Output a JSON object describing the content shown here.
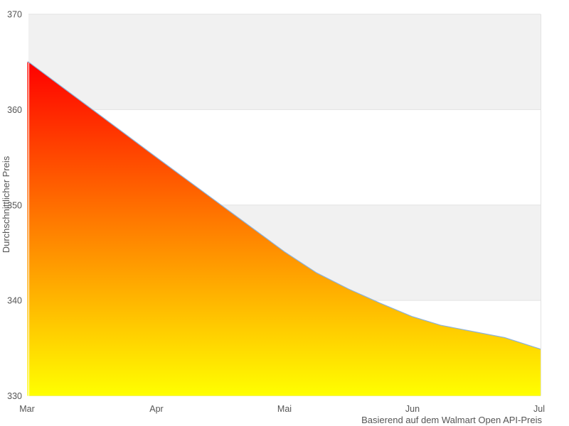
{
  "chart_data": {
    "type": "area",
    "title": "",
    "ylabel": "Durchschnittlicher Preis",
    "caption": "Basierend auf dem Walmart Open API-Preis",
    "categories": [
      "Mar",
      "Apr",
      "Mai",
      "Jun",
      "Jul"
    ],
    "yticks": [
      330,
      340,
      350,
      360,
      370
    ],
    "ylim": [
      330,
      370
    ],
    "xlim": [
      0,
      4
    ],
    "grid": "alternating horizontal gray bands between ticks",
    "legend": "none",
    "series": [
      {
        "name": "Durchschnittlicher Preis",
        "points": [
          {
            "x": 0.0,
            "y": 365.0
          },
          {
            "x": 1.0,
            "y": 355.0
          },
          {
            "x": 2.0,
            "y": 345.1
          },
          {
            "x": 2.25,
            "y": 342.9
          },
          {
            "x": 2.5,
            "y": 341.2
          },
          {
            "x": 2.75,
            "y": 339.7
          },
          {
            "x": 3.0,
            "y": 338.3
          },
          {
            "x": 3.22,
            "y": 337.4
          },
          {
            "x": 3.45,
            "y": 336.8
          },
          {
            "x": 3.72,
            "y": 336.1
          },
          {
            "x": 4.0,
            "y": 334.9
          }
        ]
      }
    ],
    "colors": {
      "area_gradient_top": "#ff0000",
      "area_gradient_bottom": "#ffff00",
      "line": "#8cb2d9",
      "band": "#f1f1f1",
      "grid_line": "#e3e3e3",
      "tick_text": "#555555",
      "caption_text": "#333333"
    }
  }
}
